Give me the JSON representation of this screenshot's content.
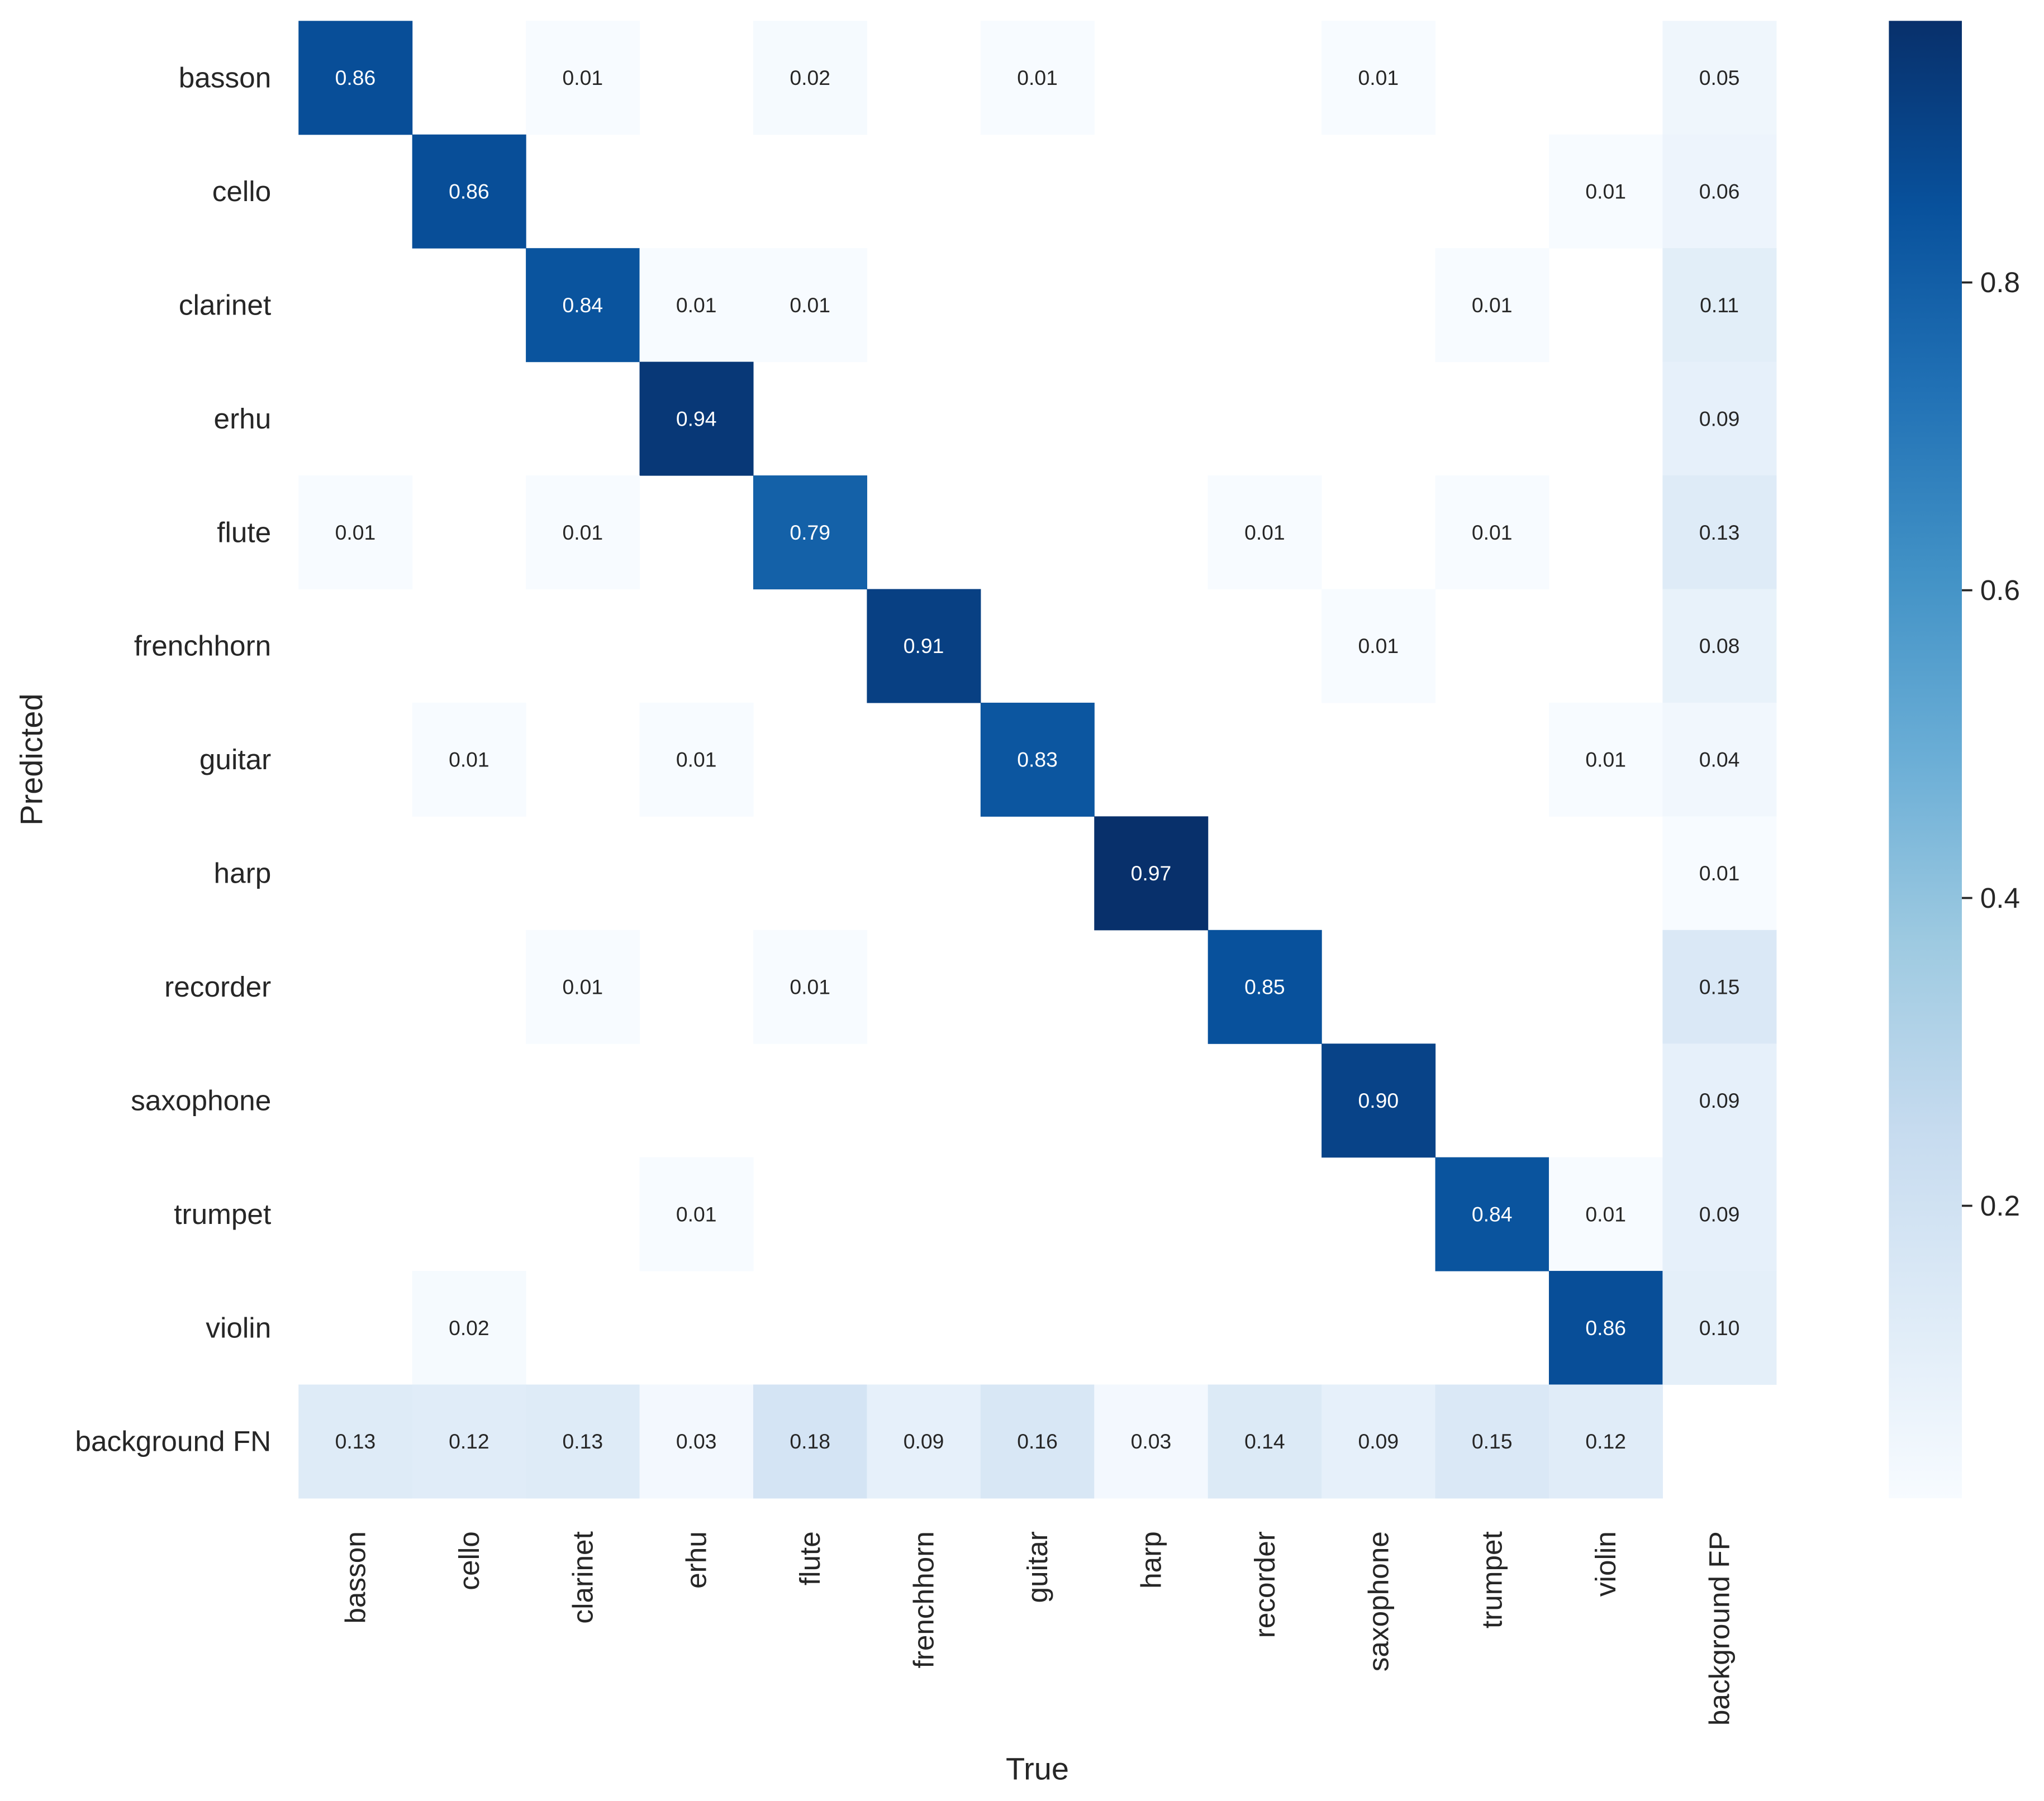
{
  "chart_data": {
    "type": "heatmap",
    "title": "",
    "xlabel": "True",
    "ylabel": "Predicted",
    "x_categories": [
      "basson",
      "cello",
      "clarinet",
      "erhu",
      "flute",
      "frenchhorn",
      "guitar",
      "harp",
      "recorder",
      "saxophone",
      "trumpet",
      "violin",
      "background FP"
    ],
    "y_categories": [
      "basson",
      "cello",
      "clarinet",
      "erhu",
      "flute",
      "frenchhorn",
      "guitar",
      "harp",
      "recorder",
      "saxophone",
      "trumpet",
      "violin",
      "background FN"
    ],
    "values": [
      [
        0.86,
        null,
        0.01,
        null,
        0.02,
        null,
        0.01,
        null,
        null,
        0.01,
        null,
        null,
        0.05
      ],
      [
        null,
        0.86,
        null,
        null,
        null,
        null,
        null,
        null,
        null,
        null,
        null,
        0.01,
        0.06
      ],
      [
        null,
        null,
        0.84,
        0.01,
        0.01,
        null,
        null,
        null,
        null,
        null,
        0.01,
        null,
        0.11
      ],
      [
        null,
        null,
        null,
        0.94,
        null,
        null,
        null,
        null,
        null,
        null,
        null,
        null,
        0.09
      ],
      [
        0.01,
        null,
        0.01,
        null,
        0.79,
        null,
        null,
        null,
        0.01,
        null,
        0.01,
        null,
        0.13
      ],
      [
        null,
        null,
        null,
        null,
        null,
        0.91,
        null,
        null,
        null,
        0.01,
        null,
        null,
        0.08
      ],
      [
        null,
        0.01,
        null,
        0.01,
        null,
        null,
        0.83,
        null,
        null,
        null,
        null,
        0.01,
        0.04
      ],
      [
        null,
        null,
        null,
        null,
        null,
        null,
        null,
        0.97,
        null,
        null,
        null,
        null,
        0.01
      ],
      [
        null,
        null,
        0.01,
        null,
        0.01,
        null,
        null,
        null,
        0.85,
        null,
        null,
        null,
        0.15
      ],
      [
        null,
        null,
        null,
        null,
        null,
        null,
        null,
        null,
        null,
        0.9,
        null,
        null,
        0.09
      ],
      [
        null,
        null,
        null,
        0.01,
        null,
        null,
        null,
        null,
        null,
        null,
        0.84,
        0.01,
        0.09
      ],
      [
        null,
        0.02,
        null,
        null,
        null,
        null,
        null,
        null,
        null,
        null,
        null,
        0.86,
        0.1
      ],
      [
        0.13,
        0.12,
        0.13,
        0.03,
        0.18,
        0.09,
        0.16,
        0.03,
        0.14,
        0.09,
        0.15,
        0.12,
        null
      ]
    ],
    "value_format": "2 decimals",
    "colormap": "Blues",
    "colorbar": {
      "range": [
        0.01,
        0.97
      ],
      "ticks": [
        0.2,
        0.4,
        0.6,
        0.8
      ],
      "tick_labels": [
        "0.2",
        "0.4",
        "0.6",
        "0.8"
      ],
      "position": "right"
    },
    "grid": false,
    "legend": "none"
  }
}
